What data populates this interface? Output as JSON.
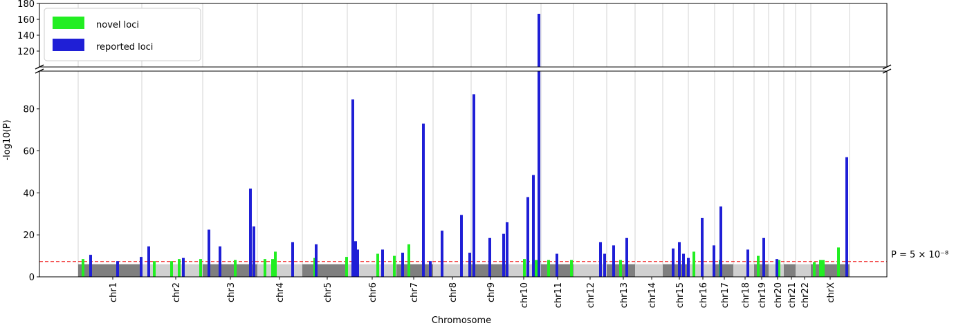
{
  "chart_data": {
    "type": "manhattan",
    "xlabel": "Chromosome",
    "ylabel": "-log10(P)",
    "categories": [
      "chr1",
      "chr2",
      "chr3",
      "chr4",
      "chr5",
      "chr6",
      "chr7",
      "chr8",
      "chr9",
      "chr10",
      "chr11",
      "chr12",
      "chr13",
      "chr14",
      "chr15",
      "chr16",
      "chr17",
      "chr18",
      "chr19",
      "chr20",
      "chr21",
      "chr22",
      "chrX"
    ],
    "xticks": [
      106,
      197,
      276,
      347,
      416,
      481,
      541,
      597,
      652,
      700,
      749,
      796,
      844,
      885,
      925,
      959,
      990,
      1020,
      1044,
      1067,
      1087,
      1106,
      1143
    ],
    "chrom_bounds": [
      56,
      148,
      236,
      315,
      380,
      445,
      516,
      569,
      624,
      675,
      725,
      772,
      820,
      861,
      901,
      938,
      976,
      1003,
      1033,
      1054,
      1076,
      1093,
      1115,
      1171
    ],
    "xlim": [
      0,
      1225
    ],
    "background_levels": [
      6,
      6,
      6,
      6,
      6,
      6,
      6,
      6,
      6,
      6,
      6,
      6,
      6,
      6,
      6,
      6,
      6,
      6,
      6,
      6,
      6,
      6,
      6
    ],
    "background_colors": [
      "#7f7f7f",
      "#d0d0d0"
    ],
    "ylim": [
      0,
      98
    ],
    "yticks": [
      0,
      20,
      40,
      60,
      80
    ],
    "ylim_upper": [
      100,
      180
    ],
    "yticks_upper": [
      120,
      140,
      160,
      180
    ],
    "grid": true,
    "threshold": 7.3,
    "threshold_label": "P = 5 × 10⁻⁸",
    "legend": "upper left",
    "series": [
      {
        "name": "novel loci",
        "color": "#22ee22",
        "x": [
          63,
          166,
          191,
          202,
          233,
          283,
          326,
          337,
          341,
          398,
          444,
          489,
          513,
          534,
          701,
          718,
          736,
          769,
          811,
          840,
          946,
          984,
          1039,
          1069,
          1120,
          1129,
          1133,
          1155
        ],
        "values": [
          8.5,
          7.5,
          7.5,
          8.5,
          8.5,
          8,
          8.5,
          8.5,
          12,
          9,
          9.5,
          11,
          10,
          15.5,
          8.5,
          8,
          8,
          8,
          8,
          8,
          12,
          8,
          10,
          8,
          7,
          8,
          8,
          14
        ]
      },
      {
        "name": "reported loci",
        "color": "#1f1fd6",
        "x": [
          74,
          113,
          147,
          158,
          208,
          245,
          261,
          305,
          310,
          366,
          400,
          453,
          457,
          460,
          496,
          525,
          555,
          565,
          582,
          610,
          622,
          628,
          651,
          671,
          676,
          706,
          714,
          722,
          748,
          811,
          817,
          830,
          849,
          916,
          925,
          931,
          938,
          958,
          975,
          985,
          1024,
          1047,
          1066,
          1167
        ],
        "values": [
          10.5,
          7.5,
          9.5,
          14.5,
          9,
          22.5,
          14.5,
          42,
          24,
          16.5,
          15.5,
          84.5,
          17,
          13,
          13,
          11.5,
          73,
          7.5,
          22,
          29.5,
          11.5,
          87,
          18.5,
          20.5,
          26,
          38,
          48.5,
          167,
          11,
          16.5,
          11,
          15,
          18.5,
          13.5,
          16.5,
          11,
          9,
          28,
          15,
          33.5,
          13,
          18.5,
          8.5,
          57
        ]
      }
    ]
  }
}
